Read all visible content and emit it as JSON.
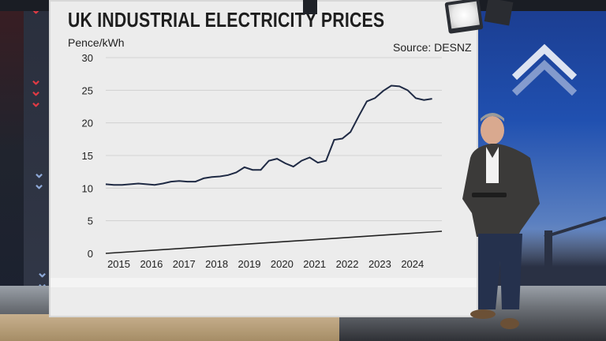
{
  "chart_data": {
    "type": "line",
    "title": "UK INDUSTRIAL ELECTRICITY PRICES",
    "ylabel": "Pence/kWh",
    "source": "Source: DESNZ",
    "ylim": [
      0,
      30
    ],
    "yticks": [
      0,
      5,
      10,
      15,
      20,
      25,
      30
    ],
    "xlim": [
      2014.6,
      2024.9
    ],
    "xticks": [
      2015,
      2016,
      2017,
      2018,
      2019,
      2020,
      2021,
      2022,
      2023,
      2024
    ],
    "series": [
      {
        "name": "Industrial electricity price",
        "x": [
          2014.6,
          2014.85,
          2015.1,
          2015.35,
          2015.6,
          2015.85,
          2016.1,
          2016.35,
          2016.6,
          2016.85,
          2017.1,
          2017.35,
          2017.6,
          2017.85,
          2018.1,
          2018.35,
          2018.6,
          2018.85,
          2019.1,
          2019.35,
          2019.6,
          2019.85,
          2020.1,
          2020.35,
          2020.6,
          2020.85,
          2021.1,
          2021.35,
          2021.6,
          2021.85,
          2022.1,
          2022.35,
          2022.6,
          2022.85,
          2023.1,
          2023.35,
          2023.6,
          2023.85,
          2024.1,
          2024.35,
          2024.6
        ],
        "values": [
          10.6,
          10.5,
          10.5,
          10.6,
          10.7,
          10.6,
          10.5,
          10.7,
          11.0,
          11.1,
          11.0,
          11.0,
          11.5,
          11.7,
          11.8,
          12.0,
          12.4,
          13.2,
          12.8,
          12.8,
          14.2,
          14.5,
          13.8,
          13.3,
          14.2,
          14.7,
          13.9,
          14.2,
          17.4,
          17.6,
          18.6,
          21.0,
          23.3,
          23.8,
          24.9,
          25.7,
          25.6,
          25.0,
          23.8,
          23.5,
          23.7
        ]
      }
    ]
  },
  "colors": {
    "line": "#1f2a44",
    "grid": "#cccccc",
    "screen": "#ececec"
  }
}
